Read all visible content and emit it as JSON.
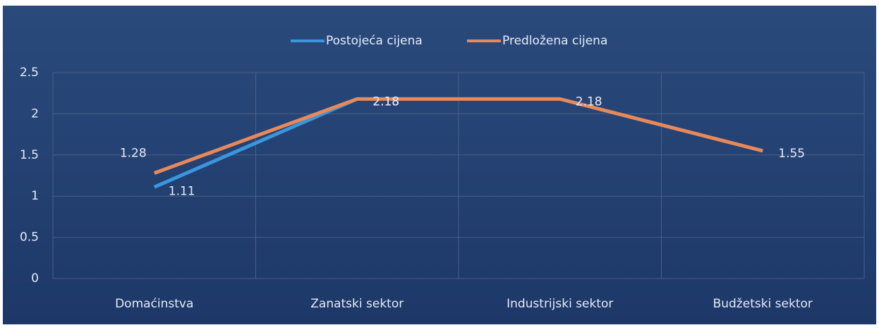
{
  "chart_data": {
    "type": "line",
    "categories": [
      "Domaćinstva",
      "Zanatski sektor",
      "Industrijski sektor",
      "Budžetski sektor"
    ],
    "series": [
      {
        "name": "Postojeća cijena",
        "color": "#3a96dd",
        "values": [
          1.11,
          2.18,
          null,
          null
        ]
      },
      {
        "name": "Predložena cijena",
        "color": "#e8895a",
        "values": [
          1.28,
          2.18,
          2.18,
          1.55
        ]
      }
    ],
    "ylim": [
      0,
      2.5
    ],
    "yticks": [
      0,
      0.5,
      1,
      1.5,
      2,
      2.5
    ],
    "grid": true,
    "legend": "top"
  }
}
